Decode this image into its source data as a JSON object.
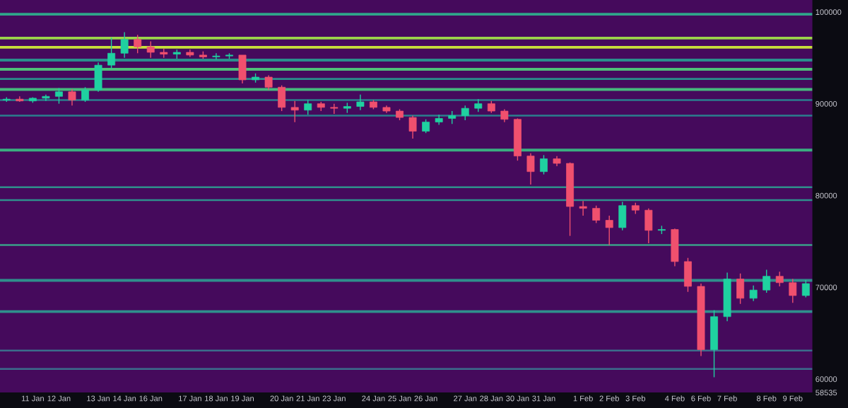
{
  "chart_data": {
    "type": "candlestick",
    "categories": [
      null,
      null,
      "11 Jan",
      null,
      "12 Jan",
      null,
      null,
      "13 Jan",
      null,
      "14 Jan",
      null,
      "16 Jan",
      null,
      null,
      "17 Jan",
      null,
      "18 Jan",
      null,
      "19 Jan",
      null,
      null,
      "20 Jan",
      null,
      "21 Jan",
      null,
      "23 Jan",
      null,
      null,
      "24 Jan",
      null,
      "25 Jan",
      null,
      "26 Jan",
      null,
      null,
      "27 Jan",
      null,
      "28 Jan",
      null,
      "30 Jan",
      null,
      "31 Jan",
      null,
      null,
      "1 Feb",
      null,
      "2 Feb",
      null,
      "3 Feb",
      null,
      null,
      "4 Feb",
      null,
      "6 Feb",
      null,
      "7 Feb",
      null,
      null,
      "8 Feb",
      null,
      "9 Feb",
      null
    ],
    "ohlc": [
      [
        90400,
        90700,
        90200,
        90500
      ],
      [
        90500,
        90800,
        90200,
        90300
      ],
      [
        90300,
        90700,
        90100,
        90600
      ],
      [
        90600,
        91000,
        90300,
        90800
      ],
      [
        90800,
        91700,
        90000,
        91300
      ],
      [
        91300,
        91600,
        89800,
        90400
      ],
      [
        90400,
        91800,
        90200,
        91500
      ],
      [
        91500,
        94500,
        91300,
        94200
      ],
      [
        94200,
        97200,
        93800,
        95500
      ],
      [
        95500,
        97800,
        95000,
        97000
      ],
      [
        97000,
        97500,
        95500,
        96200
      ],
      [
        96200,
        96800,
        95000,
        95600
      ],
      [
        95600,
        96000,
        95000,
        95400
      ],
      [
        95400,
        95900,
        94900,
        95600
      ],
      [
        95600,
        95900,
        95100,
        95300
      ],
      [
        95300,
        95700,
        94900,
        95100
      ],
      [
        95100,
        95500,
        94800,
        95200
      ],
      [
        95200,
        95500,
        94900,
        95300
      ],
      [
        95300,
        95300,
        92200,
        92600
      ],
      [
        92600,
        93300,
        92300,
        92900
      ],
      [
        92900,
        93100,
        91500,
        91800
      ],
      [
        91800,
        92000,
        89200,
        89600
      ],
      [
        89600,
        90300,
        88000,
        89300
      ],
      [
        89300,
        90400,
        88800,
        90000
      ],
      [
        90000,
        90200,
        89200,
        89600
      ],
      [
        89600,
        90000,
        88900,
        89500
      ],
      [
        89500,
        90100,
        89000,
        89700
      ],
      [
        89700,
        91000,
        89300,
        90200
      ],
      [
        90200,
        90400,
        89400,
        89600
      ],
      [
        89600,
        89800,
        89000,
        89200
      ],
      [
        89200,
        89400,
        88200,
        88500
      ],
      [
        88500,
        88700,
        86200,
        87000
      ],
      [
        87000,
        88300,
        86800,
        88000
      ],
      [
        88000,
        88800,
        87700,
        88400
      ],
      [
        88400,
        89200,
        87800,
        88700
      ],
      [
        88700,
        89800,
        88200,
        89500
      ],
      [
        89500,
        90500,
        89100,
        90000
      ],
      [
        90000,
        90300,
        89000,
        89200
      ],
      [
        89200,
        89400,
        88000,
        88300
      ],
      [
        88300,
        88400,
        83800,
        84300
      ],
      [
        84300,
        84600,
        81200,
        82600
      ],
      [
        82600,
        84400,
        82300,
        84000
      ],
      [
        84000,
        84300,
        83200,
        83500
      ],
      [
        83500,
        83600,
        75600,
        78800
      ],
      [
        78800,
        79400,
        77800,
        78600
      ],
      [
        78600,
        78900,
        77000,
        77300
      ],
      [
        77300,
        77800,
        74600,
        76500
      ],
      [
        76500,
        79300,
        76200,
        78900
      ],
      [
        78900,
        79200,
        78000,
        78400
      ],
      [
        78400,
        78600,
        74800,
        76200
      ],
      [
        76200,
        76700,
        75800,
        76300
      ],
      [
        76300,
        76400,
        72300,
        72800
      ],
      [
        72800,
        73200,
        69500,
        70100
      ],
      [
        70100,
        70400,
        62500,
        63200
      ],
      [
        63200,
        67500,
        60200,
        66800
      ],
      [
        66800,
        71600,
        66300,
        70900
      ],
      [
        70900,
        71500,
        68200,
        68800
      ],
      [
        68800,
        70200,
        68500,
        69700
      ],
      [
        69700,
        71900,
        69400,
        71200
      ],
      [
        71200,
        71700,
        70100,
        70500
      ],
      [
        70500,
        70900,
        68300,
        69100
      ],
      [
        69100,
        70800,
        68900,
        70400
      ]
    ],
    "colors": [
      "#1fd1a0",
      "#f0506e",
      "#1fd1a0",
      "#1fd1a0",
      "#1fd1a0",
      "#f0506e",
      "#1fd1a0",
      "#1fd1a0",
      "#1fd1a0",
      "#1fd1a0",
      "#f0506e",
      "#f0506e",
      "#f0506e",
      "#1fd1a0",
      "#f0506e",
      "#f0506e",
      "#1fd1a0",
      "#1fd1a0",
      "#f0506e",
      "#1fd1a0",
      "#f0506e",
      "#f0506e",
      "#f0506e",
      "#1fd1a0",
      "#f0506e",
      "#f0506e",
      "#1fd1a0",
      "#1fd1a0",
      "#f0506e",
      "#f0506e",
      "#f0506e",
      "#f0506e",
      "#1fd1a0",
      "#1fd1a0",
      "#1fd1a0",
      "#1fd1a0",
      "#1fd1a0",
      "#f0506e",
      "#f0506e",
      "#f0506e",
      "#f0506e",
      "#1fd1a0",
      "#f0506e",
      "#f0506e",
      "#f0506e",
      "#f0506e",
      "#f0506e",
      "#1fd1a0",
      "#f0506e",
      "#f0506e",
      "#1fd1a0",
      "#f0506e",
      "#f0506e",
      "#f0506e",
      "#1fd1a0",
      "#1fd1a0",
      "#f0506e",
      "#1fd1a0",
      "#1fd1a0",
      "#f0506e",
      "#f0506e",
      "#1fd1a0"
    ],
    "ylim": [
      58535,
      101300
    ],
    "yticks": [
      58535,
      60000,
      70000,
      80000,
      90000,
      100000
    ],
    "bands": [
      {
        "axis": "y",
        "from": 99600,
        "to": 99900,
        "color": "#2fa58a"
      },
      {
        "axis": "y",
        "from": 97000,
        "to": 97300,
        "color": "#9bd64a"
      },
      {
        "axis": "y",
        "from": 96000,
        "to": 96300,
        "color": "#c8e03a"
      },
      {
        "axis": "y",
        "from": 94600,
        "to": 94900,
        "color": "#2a8f8c"
      },
      {
        "axis": "y",
        "from": 93600,
        "to": 93900,
        "color": "#4fc07a"
      },
      {
        "axis": "y",
        "from": 92600,
        "to": 92800,
        "color": "#2a8f8c"
      },
      {
        "axis": "y",
        "from": 91400,
        "to": 91700,
        "color": "#46b87d"
      },
      {
        "axis": "y",
        "from": 90300,
        "to": 90500,
        "color": "#2a7f8e"
      },
      {
        "axis": "y",
        "from": 88600,
        "to": 88800,
        "color": "#2a7f8e"
      },
      {
        "axis": "y",
        "from": 84800,
        "to": 85100,
        "color": "#3aae80"
      },
      {
        "axis": "y",
        "from": 80800,
        "to": 81000,
        "color": "#2f8f8c"
      },
      {
        "axis": "y",
        "from": 79400,
        "to": 79600,
        "color": "#2f8f8c"
      },
      {
        "axis": "y",
        "from": 74500,
        "to": 74700,
        "color": "#3aa089"
      },
      {
        "axis": "y",
        "from": 70600,
        "to": 70900,
        "color": "#2f8f8c"
      },
      {
        "axis": "y",
        "from": 67200,
        "to": 67500,
        "color": "#2f8f8c"
      },
      {
        "axis": "y",
        "from": 63000,
        "to": 63200,
        "color": "#3b6d8c"
      },
      {
        "axis": "y",
        "from": 61000,
        "to": 61200,
        "color": "#3b6d8c"
      }
    ]
  }
}
